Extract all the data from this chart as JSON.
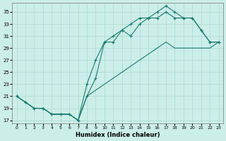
{
  "xlabel": "Humidex (Indice chaleur)",
  "bg_color": "#cceee8",
  "grid_color": "#b0ddd6",
  "line_color": "#1a7a6e",
  "xlim": [
    -0.5,
    23.5
  ],
  "ylim": [
    16.5,
    36.5
  ],
  "xticks": [
    0,
    1,
    2,
    3,
    4,
    5,
    6,
    7,
    8,
    9,
    10,
    11,
    12,
    13,
    14,
    15,
    16,
    17,
    18,
    19,
    20,
    21,
    22,
    23
  ],
  "yticks": [
    17,
    19,
    21,
    23,
    25,
    27,
    29,
    31,
    33,
    35
  ],
  "line1_x": [
    0,
    1,
    2,
    3,
    4,
    5,
    6,
    7,
    8,
    9,
    10,
    11,
    12,
    13,
    14,
    15,
    16,
    17,
    18,
    19,
    20,
    21,
    22,
    23
  ],
  "line1_y": [
    21,
    20,
    19,
    19,
    18,
    18,
    18,
    17,
    23,
    27,
    30,
    31,
    32,
    33,
    34,
    34,
    34,
    35,
    34,
    34,
    34,
    32,
    30,
    30
  ],
  "line2_x": [
    0,
    1,
    2,
    3,
    4,
    5,
    6,
    7,
    8,
    9,
    10,
    11,
    12,
    13,
    14,
    15,
    16,
    17,
    18,
    19,
    20,
    21,
    22,
    23
  ],
  "line2_y": [
    21,
    20,
    19,
    19,
    18,
    18,
    18,
    17,
    21,
    24,
    30,
    30,
    32,
    31,
    33,
    34,
    35,
    36,
    35,
    34,
    34,
    32,
    30,
    30
  ],
  "line3_x": [
    0,
    1,
    2,
    3,
    4,
    5,
    6,
    7,
    8,
    9,
    10,
    11,
    12,
    13,
    14,
    15,
    16,
    17,
    18,
    19,
    20,
    21,
    22,
    23
  ],
  "line3_y": [
    21,
    20,
    19,
    19,
    18,
    18,
    18,
    17,
    21,
    22,
    23,
    24,
    25,
    26,
    27,
    28,
    29,
    30,
    29,
    29,
    29,
    29,
    29,
    30
  ]
}
